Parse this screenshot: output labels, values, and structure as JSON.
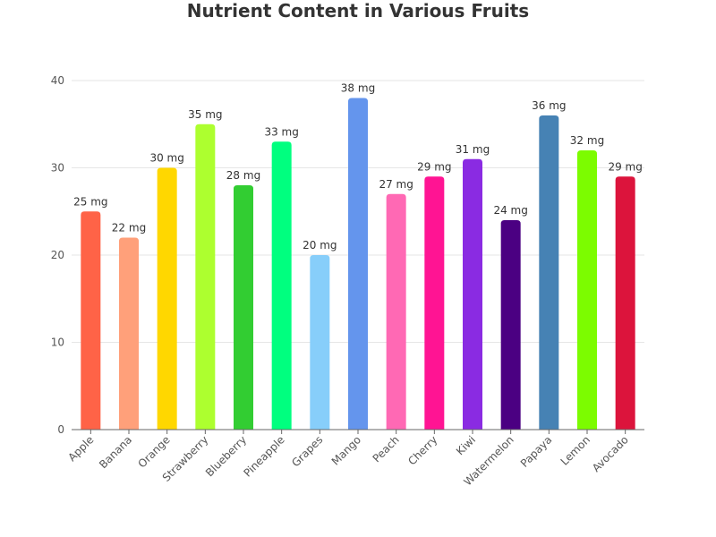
{
  "chart_data": {
    "type": "bar",
    "title": "Nutrient Content in Various Fruits",
    "xlabel": "",
    "ylabel": "",
    "categories": [
      "Apple",
      "Banana",
      "Orange",
      "Strawberry",
      "Blueberry",
      "Pineapple",
      "Grapes",
      "Mango",
      "Peach",
      "Cherry",
      "Kiwi",
      "Watermelon",
      "Papaya",
      "Lemon",
      "Avocado"
    ],
    "values": [
      25,
      22,
      30,
      35,
      28,
      33,
      20,
      38,
      27,
      29,
      31,
      24,
      36,
      32,
      29
    ],
    "value_unit": "mg",
    "data_labels": [
      "25 mg",
      "22 mg",
      "30 mg",
      "35 mg",
      "28 mg",
      "33 mg",
      "20 mg",
      "38 mg",
      "27 mg",
      "29 mg",
      "31 mg",
      "24 mg",
      "36 mg",
      "32 mg",
      "29 mg"
    ],
    "colors": [
      "#ff6347",
      "#ffa07a",
      "#ffd700",
      "#adff2f",
      "#32cd32",
      "#00ff7f",
      "#87cefa",
      "#6495ed",
      "#ff69b4",
      "#ff1493",
      "#8a2be2",
      "#4b0082",
      "#4682b4",
      "#7cfc00",
      "#dc143c"
    ],
    "ylim": [
      0,
      40
    ],
    "yticks": [
      0,
      10,
      20,
      30,
      40
    ],
    "grid": true,
    "legend": "none"
  }
}
